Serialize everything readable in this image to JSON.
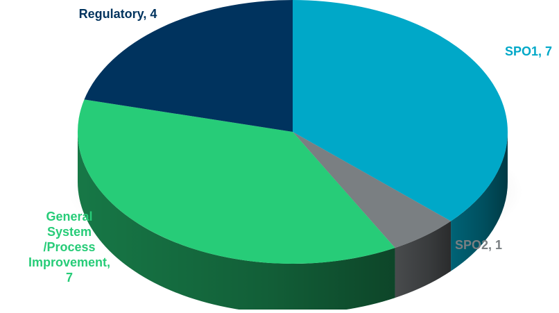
{
  "chart_data": {
    "type": "pie",
    "style": "3d",
    "title": "",
    "categories": [
      "SPO1",
      "SPO2",
      "General System /Process Improvement",
      "Regulatory"
    ],
    "values": [
      7,
      1,
      7,
      4
    ],
    "colors": [
      "#00a8c8",
      "#7a7f82",
      "#27cc78",
      "#00335e"
    ],
    "data_labels": [
      {
        "category_lines": [
          "SPO1, 7"
        ],
        "color": "#00a8c8"
      },
      {
        "category_lines": [
          "SPO2, 1"
        ],
        "color": "#7a7f82"
      },
      {
        "category_lines": [
          "General",
          "System",
          "/Process",
          "Improvement,",
          "7"
        ],
        "color": "#27cc78"
      },
      {
        "category_lines": [
          "Regulatory, 4"
        ],
        "color": "#00335e"
      }
    ],
    "legend": "none"
  }
}
